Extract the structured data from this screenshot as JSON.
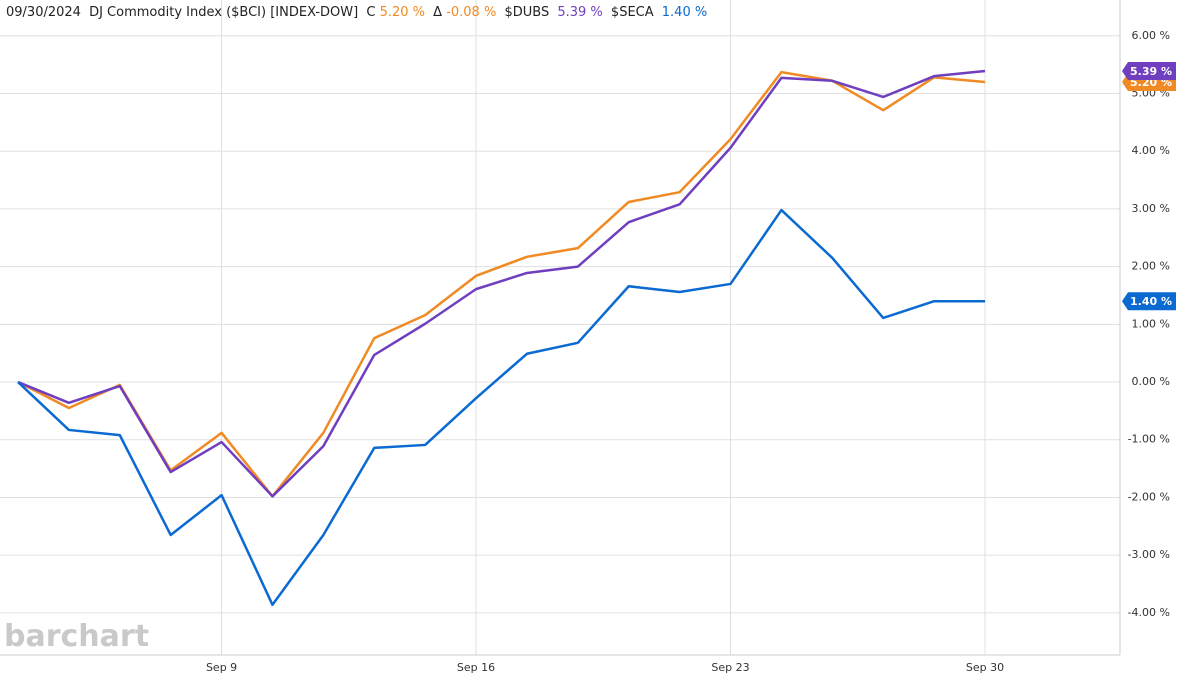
{
  "chart_data": {
    "type": "line",
    "header": {
      "date": "09/30/2024",
      "close_prefix": "C",
      "change_prefix": "Δ",
      "change": "-0.08 %"
    },
    "watermark": "barchart",
    "categories": [
      null,
      null,
      null,
      null,
      "Sep 9",
      null,
      null,
      null,
      null,
      "Sep 16",
      null,
      null,
      null,
      null,
      "Sep 23",
      null,
      null,
      null,
      null,
      "Sep 30"
    ],
    "series": [
      {
        "name": "DJ Commodity Index ($BCI) [INDEX-DOW]",
        "color": "#f08a24",
        "last_label": "5.20 %",
        "values": [
          0,
          -0.45,
          -0.05,
          -1.53,
          -0.88,
          -1.98,
          -0.88,
          0.76,
          1.16,
          1.84,
          2.17,
          2.32,
          3.12,
          3.29,
          4.21,
          5.37,
          5.22,
          4.71,
          5.28,
          5.2
        ]
      },
      {
        "name": "$DUBS",
        "color": "#6f3fbf",
        "last_label": "5.39 %",
        "values": [
          0,
          -0.36,
          -0.07,
          -1.56,
          -1.04,
          -1.98,
          -1.11,
          0.47,
          1.01,
          1.61,
          1.89,
          2.0,
          2.77,
          3.08,
          4.06,
          5.27,
          5.22,
          4.94,
          5.3,
          5.39
        ]
      },
      {
        "name": "$SECA",
        "color": "#0a6ad1",
        "last_label": "1.40 %",
        "values": [
          0,
          -0.83,
          -0.92,
          -2.65,
          -1.96,
          -3.86,
          -2.65,
          -1.14,
          -1.09,
          -0.28,
          0.49,
          0.68,
          1.66,
          1.56,
          1.7,
          2.98,
          2.15,
          1.11,
          1.4,
          1.4
        ]
      }
    ],
    "ylim": [
      -4.73,
      6.62
    ],
    "yticks": [
      {
        "value": -4,
        "label": "-4.00 %"
      },
      {
        "value": -3,
        "label": "-3.00 %"
      },
      {
        "value": -2,
        "label": "-2.00 %"
      },
      {
        "value": -1,
        "label": "-1.00 %"
      },
      {
        "value": 0,
        "label": "0.00 %"
      },
      {
        "value": 1,
        "label": "1.00 %"
      },
      {
        "value": 2,
        "label": "2.00 %"
      },
      {
        "value": 3,
        "label": "3.00 %"
      },
      {
        "value": 4,
        "label": "4.00 %"
      },
      {
        "value": 5,
        "label": "5.00 %"
      },
      {
        "value": 6,
        "label": "6.00 %"
      }
    ],
    "grid": true
  }
}
